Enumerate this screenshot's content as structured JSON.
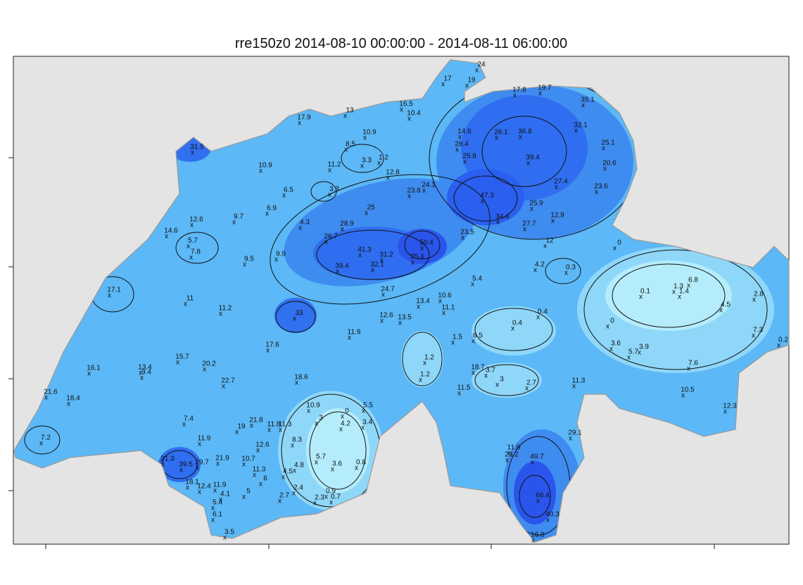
{
  "title": "rre150z0 2014-08-10 00:00:00 - 2014-08-11 06:00:00",
  "station_values": [
    24,
    17,
    19,
    17.8,
    19.7,
    35.1,
    16.5,
    13,
    10.4,
    17.9,
    14.6,
    26.1,
    36.8,
    32.1,
    10.9,
    28.4,
    25.1,
    8.5,
    31.5,
    25.8,
    3.3,
    1.2,
    11.2,
    10.9,
    39.4,
    20.6,
    12.8,
    24.1,
    27.4,
    23.6,
    23.8,
    6.5,
    3.3,
    47.3,
    25.9,
    6.9,
    25,
    12.6,
    9.7,
    28.9,
    34.4,
    12.9,
    4.3,
    27.7,
    14.6,
    23.5,
    26.7,
    5.7,
    50.4,
    12,
    0,
    7.8,
    41.3,
    31.2,
    9.9,
    25.4,
    9.5,
    39.4,
    32.1,
    4.2,
    0.3,
    17.1,
    5.4,
    6.8,
    1.3,
    0.1,
    24.7,
    10.6,
    1.4,
    2.8,
    11,
    13.4,
    4.5,
    11.1,
    0.4,
    11.2,
    33,
    12.6,
    13.5,
    0.4,
    0,
    7.3,
    11.9,
    6.5,
    1.5,
    0.2,
    17.6,
    3.6,
    3.9,
    5.7,
    15.7,
    1.2,
    13.4,
    20.2,
    16.1,
    9.4,
    18.7,
    3.7,
    1.2,
    7.6,
    3,
    2.7,
    18.6,
    22.7,
    11.3,
    21.6,
    11.5,
    10.5,
    18.4,
    0,
    5.5,
    10.9,
    12.3,
    3,
    4.2,
    3.4,
    7.4,
    21.8,
    11.8,
    11.3,
    19,
    29.1,
    11.9,
    8.3,
    12.6,
    11.6,
    23.2,
    49.7,
    21.3,
    10.7,
    5.7,
    3.6,
    0.8,
    39.5,
    29.7,
    21.9,
    4.8,
    11.3,
    4.5,
    6,
    18.1,
    12.4,
    11.9,
    2.4,
    4.1,
    5,
    2.7,
    0.9,
    2.3,
    0.7,
    66.4,
    5.4,
    6.1,
    40.3,
    3.5,
    16.8,
    7.2
  ]
}
